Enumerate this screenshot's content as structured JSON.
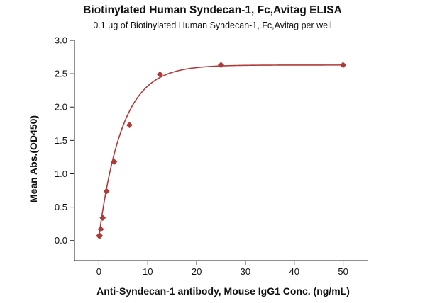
{
  "chart_data": {
    "type": "scatter",
    "title": "Biotinylated Human Syndecan-1, Fc,Avitag ELISA",
    "subtitle": "0.1 μg of Biotinylated Human Syndecan-1, Fc,Avitag per well",
    "xlabel": "Anti-Syndecan-1 antibody, Mouse IgG1 Conc. (ng/mL)",
    "ylabel": "Mean Abs.(OD450)",
    "xlim": [
      -5,
      55
    ],
    "ylim": [
      -0.3,
      3.0
    ],
    "xticks": [
      0,
      10,
      20,
      30,
      40,
      50
    ],
    "yticks": [
      0.0,
      0.5,
      1.0,
      1.5,
      2.0,
      2.5,
      3.0
    ],
    "xtick_labels": [
      "0",
      "10",
      "20",
      "30",
      "40",
      "50"
    ],
    "ytick_labels": [
      "0.0",
      "0.5",
      "1.0",
      "1.5",
      "2.0",
      "2.5",
      "3.0"
    ],
    "grid": false,
    "legend": "none",
    "series": [
      {
        "color": "#b03a3a",
        "x": [
          0.049,
          0.098,
          0.195,
          0.39,
          0.78,
          1.56,
          3.125,
          6.25,
          12.5,
          25,
          50
        ],
        "y": [
          0.07,
          0.07,
          0.07,
          0.17,
          0.34,
          0.74,
          1.18,
          1.73,
          2.49,
          2.63,
          2.63
        ]
      }
    ],
    "fit_curve": {
      "color": "#b03a3a",
      "bottom": 0.06,
      "top": 2.63,
      "rate": 0.21
    }
  }
}
